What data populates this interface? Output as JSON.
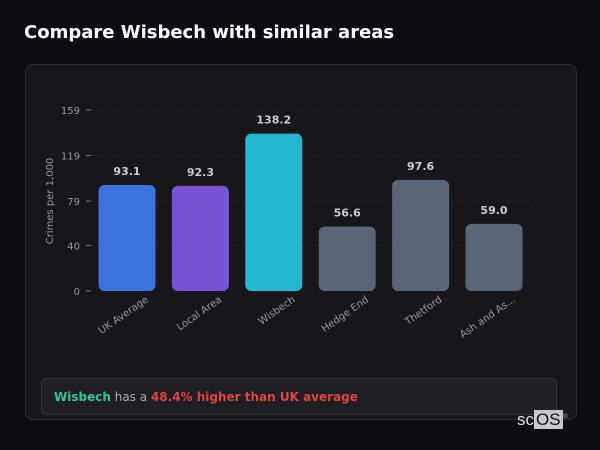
{
  "title": "Compare Wisbech with similar areas",
  "chart_data": {
    "type": "bar",
    "categories": [
      "UK Average",
      "Local Area",
      "Wisbech",
      "Hedge End",
      "Thetford",
      "Ash and As..."
    ],
    "values": [
      93.1,
      92.3,
      138.2,
      56.6,
      97.6,
      59.0
    ],
    "data_labels": [
      "93.1",
      "92.3",
      "138.2",
      "56.6",
      "97.6",
      "59.0"
    ],
    "colors": [
      "#3a74dc",
      "#7a52d4",
      "#22b8d0",
      "#5a6578",
      "#5a6578",
      "#5a6578"
    ],
    "ylabel": "Crimes per 1,000",
    "yticks": [
      0,
      40,
      79,
      119,
      159
    ],
    "ylim": [
      0,
      159
    ],
    "grid": true
  },
  "summary": {
    "area": "Wisbech",
    "middle": "has a",
    "comparison": "48.4% higher than UK average"
  },
  "logo": {
    "text_a": "sc",
    "text_b": "OS",
    "mark": "®"
  }
}
